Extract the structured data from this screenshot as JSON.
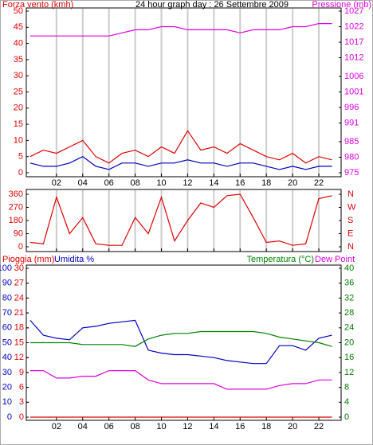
{
  "chart_data": [
    {
      "type": "line",
      "title": "24 hour graph day : 26 Settembre 2009",
      "ylabel": "Forza vento (kmh)",
      "y2label": "Pressione (mb)",
      "ycolor": "#e00000",
      "y2color": "#e000e0",
      "grid": true,
      "xlim": [
        -0.3,
        23.7
      ],
      "xticks": [
        {
          "value": 2,
          "label": "02"
        },
        {
          "value": 4,
          "label": "04"
        },
        {
          "value": 6,
          "label": "06"
        },
        {
          "value": 8,
          "label": "08"
        },
        {
          "value": 10,
          "label": "10"
        },
        {
          "value": 12,
          "label": "12"
        },
        {
          "value": 14,
          "label": "14"
        },
        {
          "value": 16,
          "label": "16"
        },
        {
          "value": 18,
          "label": "18"
        },
        {
          "value": 20,
          "label": "20"
        },
        {
          "value": 22,
          "label": "22"
        }
      ],
      "ylim": [
        0,
        50
      ],
      "yticks": [
        0,
        5,
        10,
        15,
        20,
        25,
        30,
        35,
        40,
        45,
        50
      ],
      "y2lim": [
        975,
        1027
      ],
      "y2ticks": [
        975,
        980,
        985,
        991,
        996,
        1001,
        1006,
        1012,
        1017,
        1022,
        1027
      ],
      "x": [
        0,
        1,
        2,
        3,
        4,
        5,
        6,
        7,
        8,
        9,
        10,
        11,
        12,
        13,
        14,
        15,
        16,
        17,
        18,
        19,
        20,
        21,
        22,
        23
      ],
      "series": [
        {
          "color": "#e00000",
          "values": [
            5,
            7,
            6,
            8,
            10,
            5,
            3,
            6,
            7,
            5,
            8,
            6,
            13,
            7,
            8,
            6,
            9,
            7,
            5,
            4,
            6,
            3,
            5,
            4
          ]
        },
        {
          "color": "#0000c0",
          "values": [
            3,
            2,
            2,
            3,
            5,
            2,
            1,
            3,
            3,
            2,
            3,
            3,
            4,
            3,
            3,
            2,
            3,
            3,
            2,
            1,
            2,
            1,
            2,
            2
          ]
        },
        {
          "color": "#e000e0",
          "axis": "y2",
          "values": [
            1019,
            1019,
            1019,
            1019,
            1019,
            1019,
            1019,
            1020,
            1021,
            1021,
            1022,
            1022,
            1021,
            1021,
            1021,
            1021,
            1020,
            1021,
            1021,
            1021,
            1022,
            1022,
            1023,
            1023
          ]
        }
      ]
    },
    {
      "type": "line",
      "ycolor": "#e00000",
      "y2color": "#e00000",
      "grid": true,
      "xlim": [
        -0.3,
        23.7
      ],
      "xticks": [
        {
          "value": 2,
          "label": "02"
        },
        {
          "value": 4,
          "label": "04"
        },
        {
          "value": 6,
          "label": "06"
        },
        {
          "value": 8,
          "label": "08"
        },
        {
          "value": 10,
          "label": "10"
        },
        {
          "value": 12,
          "label": "12"
        },
        {
          "value": 14,
          "label": "14"
        },
        {
          "value": 16,
          "label": "16"
        },
        {
          "value": 18,
          "label": "18"
        },
        {
          "value": 20,
          "label": "20"
        },
        {
          "value": 22,
          "label": "22"
        }
      ],
      "ylim": [
        0,
        360
      ],
      "yticks": [
        0,
        90,
        180,
        270,
        360
      ],
      "y2lim": [
        0,
        360
      ],
      "y2ticks": [
        {
          "value": 0,
          "label": "N"
        },
        {
          "value": 90,
          "label": "E"
        },
        {
          "value": 180,
          "label": "S"
        },
        {
          "value": 270,
          "label": "W"
        },
        {
          "value": 360,
          "label": "N"
        }
      ],
      "x": [
        0,
        1,
        2,
        3,
        4,
        5,
        6,
        7,
        8,
        9,
        10,
        11,
        12,
        13,
        14,
        15,
        16,
        17,
        18,
        19,
        20,
        21,
        22,
        23
      ],
      "series": [
        {
          "color": "#e00000",
          "values": [
            30,
            20,
            340,
            90,
            200,
            20,
            10,
            10,
            200,
            90,
            340,
            40,
            180,
            300,
            270,
            350,
            360,
            200,
            30,
            40,
            10,
            20,
            330,
            350
          ]
        }
      ]
    },
    {
      "type": "line",
      "ylabel": "Pioggia (mm)",
      "y3label": "Umidita %",
      "y2label": "Temperatura (°C)",
      "ycolor": "#e00000",
      "y2color": "#008000",
      "y3color": "#0000c0",
      "grid": false,
      "xlim": [
        -0.3,
        23.7
      ],
      "xticks": [
        {
          "value": 2,
          "label": "02"
        },
        {
          "value": 4,
          "label": "04"
        },
        {
          "value": 6,
          "label": "06"
        },
        {
          "value": 8,
          "label": "08"
        },
        {
          "value": 10,
          "label": "10"
        },
        {
          "value": 12,
          "label": "12"
        },
        {
          "value": 14,
          "label": "14"
        },
        {
          "value": 16,
          "label": "16"
        },
        {
          "value": 18,
          "label": "18"
        },
        {
          "value": 20,
          "label": "20"
        },
        {
          "value": 22,
          "label": "22"
        }
      ],
      "ylim": [
        0,
        30
      ],
      "yticks": [
        0,
        3,
        6,
        9,
        12,
        15,
        18,
        21,
        24,
        27,
        30
      ],
      "y3lim": [
        0,
        100
      ],
      "y3ticks": [
        0,
        10,
        20,
        30,
        40,
        50,
        60,
        70,
        80,
        90,
        100
      ],
      "y2lim": [
        0,
        40
      ],
      "y2ticks": [
        0,
        4,
        8,
        12,
        16,
        20,
        24,
        28,
        32,
        36,
        40
      ],
      "x": [
        0,
        1,
        2,
        3,
        4,
        5,
        6,
        7,
        8,
        9,
        10,
        11,
        12,
        13,
        14,
        15,
        16,
        17,
        18,
        19,
        20,
        21,
        22,
        23
      ],
      "series": [
        {
          "color": "#e00000",
          "values": [
            0,
            0,
            0,
            0,
            0,
            0,
            0,
            0,
            0,
            0,
            0,
            0,
            0,
            0,
            0,
            0,
            0,
            0,
            0,
            0,
            0,
            0,
            0,
            0
          ]
        },
        {
          "color": "#0000c0",
          "axis": "y3",
          "values": [
            65,
            55,
            53,
            52,
            60,
            61,
            63,
            64,
            65,
            45,
            43,
            42,
            42,
            41,
            40,
            38,
            37,
            36,
            36,
            48,
            48,
            45,
            53,
            55
          ]
        },
        {
          "color": "#008000",
          "axis": "y2",
          "values": [
            20,
            20,
            20,
            20,
            19.5,
            19.5,
            19.5,
            19.5,
            19,
            21,
            22,
            22.5,
            22.5,
            23,
            23,
            23,
            23,
            23,
            22.5,
            21.5,
            21,
            20.5,
            20,
            19
          ]
        },
        {
          "name": "Dew Point",
          "color": "#e000e0",
          "axis": "y2",
          "values": [
            12.5,
            12.5,
            10.5,
            10.5,
            11,
            11,
            12.5,
            12.5,
            12.5,
            10,
            9,
            9,
            9,
            9,
            9,
            7.5,
            7.5,
            7.5,
            7.5,
            8.5,
            9,
            9,
            10,
            10
          ]
        }
      ]
    }
  ]
}
